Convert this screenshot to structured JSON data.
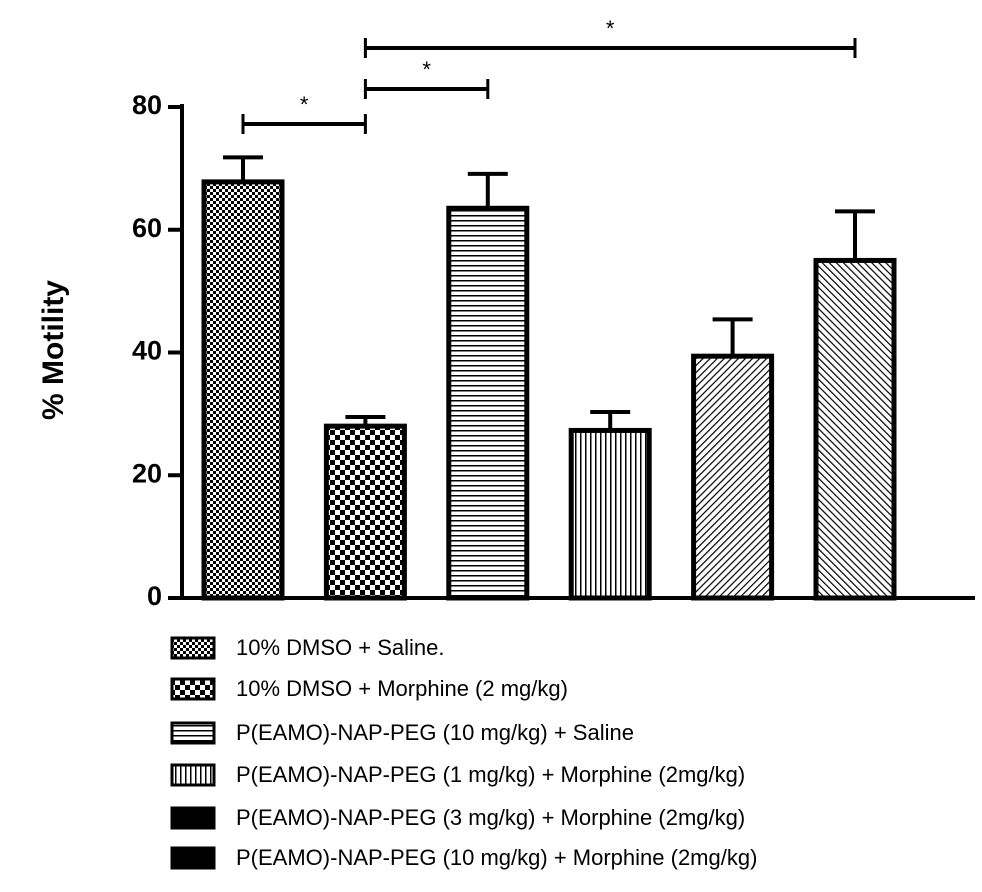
{
  "chart_data": {
    "type": "bar",
    "y_label": "% Motility",
    "categories": [
      "10% DMSO + Saline.",
      "10% DMSO + Morphine (2 mg/kg)",
      "P(EAMO)-NAP-PEG (10 mg/kg) + Saline",
      "P(EAMO)-NAP-PEG (1 mg/kg) + Morphine (2mg/kg)",
      "P(EAMO)-NAP-PEG (3 mg/kg) +  Morphine (2mg/kg)",
      "P(EAMO)-NAP-PEG (10 mg/kg) + Morphine (2mg/kg)"
    ],
    "values": [
      67.8,
      28,
      63.5,
      27.3,
      39.4,
      55
    ],
    "errors": [
      4,
      1.5,
      5.6,
      3,
      6,
      8
    ],
    "patterns": [
      "checker-fine",
      "checker",
      "hlines",
      "vlines",
      "diag-fine",
      "diag"
    ],
    "color": "#000000",
    "ylim": [
      0,
      80
    ],
    "yticks": [
      0,
      20,
      40,
      60,
      80
    ],
    "annotations": [
      {
        "from": 0,
        "to": 1,
        "label": "*"
      },
      {
        "from": 1,
        "to": 2,
        "label": "*"
      },
      {
        "from": 1,
        "to": 5,
        "label": "*"
      }
    ]
  }
}
